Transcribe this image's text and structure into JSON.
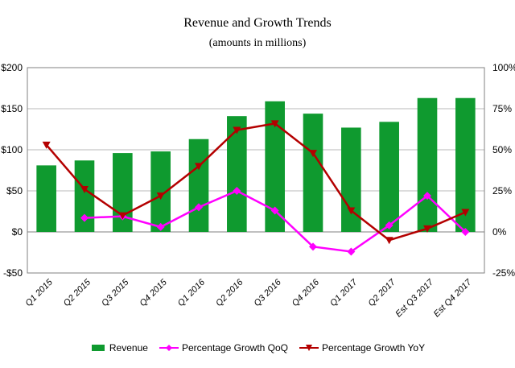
{
  "chart_data": {
    "type": "bar",
    "title": "Revenue and Growth Trends",
    "subtitle": "(amounts in millions)",
    "categories": [
      "Q1 2015",
      "Q2 2015",
      "Q3 2015",
      "Q4 2015",
      "Q1 2016",
      "Q2 2016",
      "Q3 2016",
      "Q4 2016",
      "Q1 2017",
      "Q2 2017",
      "Est Q3 2017",
      "Est Q4 2017"
    ],
    "left_axis": {
      "ylim": [
        -50,
        200
      ],
      "ticks": [
        "-$50",
        "$0",
        "$50",
        "$100",
        "$150",
        "$200"
      ],
      "tick_values": [
        -50,
        0,
        50,
        100,
        150,
        200
      ]
    },
    "right_axis": {
      "ylim": [
        -25,
        100
      ],
      "ticks": [
        "-25%",
        "0%",
        "25%",
        "50%",
        "75%",
        "100%"
      ],
      "tick_values": [
        -25,
        0,
        25,
        50,
        75,
        100
      ]
    },
    "grid": "horizontal",
    "legend_position": "bottom",
    "series": [
      {
        "name": "Revenue",
        "type": "bar",
        "axis": "left",
        "color": "#0f9a2f",
        "values": [
          81,
          87,
          96,
          98,
          113,
          141,
          159,
          144,
          127,
          134,
          163,
          163
        ]
      },
      {
        "name": "Percentage Growth QoQ",
        "type": "line",
        "axis": "right",
        "color": "#ff00ff",
        "marker": "diamond",
        "values": [
          null,
          8.5,
          9.5,
          3,
          15,
          25,
          13,
          -9,
          -12,
          4,
          22,
          0
        ]
      },
      {
        "name": "Percentage Growth YoY",
        "type": "line",
        "axis": "right",
        "color": "#b40000",
        "marker": "triangle-down",
        "values": [
          53,
          26,
          10,
          22,
          40,
          62,
          66,
          48,
          13,
          -5,
          2,
          12
        ]
      }
    ]
  }
}
